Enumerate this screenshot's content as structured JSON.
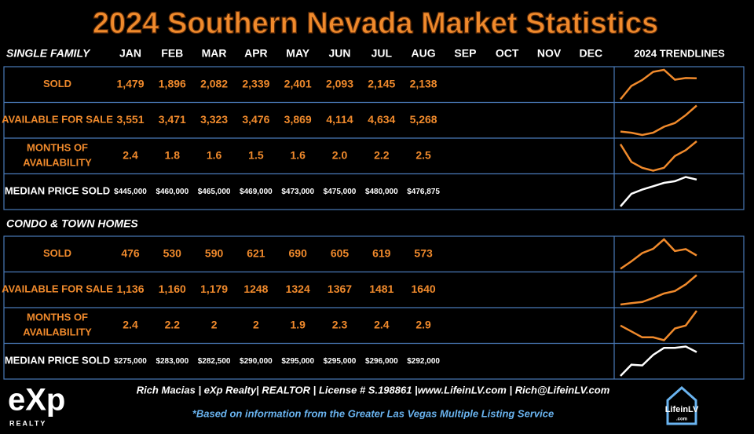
{
  "title": "2024 Southern Nevada Market Statistics",
  "months": [
    "JAN",
    "FEB",
    "MAR",
    "APR",
    "MAY",
    "JUN",
    "JUL",
    "AUG",
    "SEP",
    "OCT",
    "NOV",
    "DEC"
  ],
  "trendlines_header": "2024 TRENDLINES",
  "sections": [
    {
      "name": "SINGLE FAMILY",
      "rows": [
        {
          "label": [
            "SOLD"
          ],
          "color": "#f08a2c",
          "values": [
            1479,
            1896,
            2082,
            2339,
            2401,
            2093,
            2145,
            2138
          ],
          "value_labels": [
            "1,479",
            "1,896",
            "2,082",
            "2,339",
            "2,401",
            "2,093",
            "2,145",
            "2,138"
          ]
        },
        {
          "label": [
            "AVAILABLE FOR SALE"
          ],
          "color": "#f08a2c",
          "values": [
            3551,
            3471,
            3323,
            3476,
            3869,
            4114,
            4634,
            5268
          ],
          "value_labels": [
            "3,551",
            "3,471",
            "3,323",
            "3,476",
            "3,869",
            "4,114",
            "4,634",
            "5,268"
          ]
        },
        {
          "label": [
            "MONTHS OF",
            "AVAILABILITY"
          ],
          "color": "#f08a2c",
          "values": [
            2.4,
            1.8,
            1.6,
            1.5,
            1.6,
            2.0,
            2.2,
            2.5
          ],
          "value_labels": [
            "2.4",
            "1.8",
            "1.6",
            "1.5",
            "1.6",
            "2.0",
            "2.2",
            "2.5"
          ]
        },
        {
          "label": [
            "MEDIAN PRICE SOLD"
          ],
          "color": "#ffffff",
          "values": [
            445000,
            460000,
            465000,
            469000,
            473000,
            475000,
            480000,
            476875
          ],
          "value_labels": [
            "$445,000",
            "$460,000",
            "$465,000",
            "$469,000",
            "$473,000",
            "$475,000",
            "$480,000",
            "$476,875"
          ]
        }
      ]
    },
    {
      "name": "CONDO & TOWN HOMES",
      "rows": [
        {
          "label": [
            "SOLD"
          ],
          "color": "#f08a2c",
          "values": [
            476,
            530,
            590,
            621,
            690,
            605,
            619,
            573
          ]
        },
        {
          "label": [
            "AVAILABLE FOR SALE"
          ],
          "color": "#f08a2c",
          "values": [
            1136,
            1160,
            1179,
            1248,
            1324,
            1367,
            1481,
            1640
          ],
          "value_labels": [
            "1,136",
            "1,160",
            "1,179",
            "1248",
            "1324",
            "1367",
            "1481",
            "1640"
          ]
        },
        {
          "label": [
            "MONTHS OF",
            "AVAILABILITY"
          ],
          "color": "#f08a2c",
          "values": [
            2.4,
            2.2,
            2,
            2,
            1.9,
            2.3,
            2.4,
            2.9
          ]
        },
        {
          "label": [
            "MEDIAN PRICE SOLD"
          ],
          "color": "#ffffff",
          "values": [
            275000,
            283000,
            282500,
            290000,
            295000,
            295000,
            296000,
            292000
          ],
          "value_labels": [
            "$275,000",
            "$283,000",
            "$282,500",
            "$290,000",
            "$295,000",
            "$295,000",
            "$296,000",
            "$292,000"
          ]
        }
      ]
    }
  ],
  "footer": {
    "contact": "Rich Macias | eXp Realty| REALTOR | License # S.198861 |www.LifeinLV.com | Rich@LifeinLV.com",
    "note": "*Based on information from the Greater Las Vegas Multiple Listing Service"
  },
  "logos": {
    "left": "eXp",
    "left_sub": "REALTY",
    "right": "LifeinLV",
    "right_sub": ".com"
  }
}
